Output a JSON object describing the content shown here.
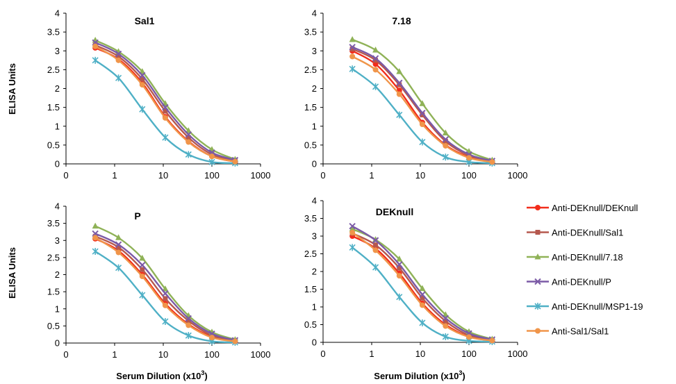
{
  "figure": {
    "xlabel": "Serum Dilution (x10",
    "xlabel_sup": "3",
    "xlabel_end": ")",
    "ylabel": "ELISA Units"
  },
  "legend": [
    {
      "label": "Anti-DEKnull/DEKnull",
      "color": "#f22d1b",
      "marker": "circle"
    },
    {
      "label": "Anti-DEKnull/Sal1",
      "color": "#b5584e",
      "marker": "square"
    },
    {
      "label": "Anti-DEKnull/7.18",
      "color": "#8fb257",
      "marker": "triangle"
    },
    {
      "label": "Anti-DEKnull/P",
      "color": "#7b5aa6",
      "marker": "x"
    },
    {
      "label": "Anti-DEKnull/MSP1-19",
      "color": "#4fb0c6",
      "marker": "star"
    },
    {
      "label": "Anti-Sal1/Sal1",
      "color": "#f0954a",
      "marker": "circle"
    }
  ],
  "chart_data": [
    {
      "type": "line",
      "title": "Sal1",
      "x_scale": "log",
      "xlim": [
        0.1,
        1000
      ],
      "ylim": [
        0,
        4
      ],
      "x_ticks": [
        "0",
        "1",
        "10",
        "100",
        "1000"
      ],
      "y_ticks": [
        "0",
        "0.5",
        "1",
        "1.5",
        "2",
        "2.5",
        "3",
        "3.5",
        "4"
      ],
      "x": [
        0.4,
        1.2,
        3.7,
        11,
        33,
        100,
        300
      ],
      "series": [
        {
          "name": "Anti-DEKnull/DEKnull",
          "values": [
            3.08,
            2.78,
            2.15,
            1.25,
            0.6,
            0.2,
            0.06
          ]
        },
        {
          "name": "Anti-DEKnull/Sal1",
          "values": [
            3.15,
            2.85,
            2.25,
            1.4,
            0.7,
            0.25,
            0.08
          ]
        },
        {
          "name": "Anti-DEKnull/7.18",
          "values": [
            3.28,
            2.98,
            2.45,
            1.6,
            0.88,
            0.38,
            0.12
          ]
        },
        {
          "name": "Anti-DEKnull/P",
          "values": [
            3.22,
            2.92,
            2.35,
            1.5,
            0.78,
            0.3,
            0.1
          ]
        },
        {
          "name": "Anti-DEKnull/MSP1-19",
          "values": [
            2.75,
            2.28,
            1.45,
            0.7,
            0.25,
            0.05,
            0.02
          ]
        },
        {
          "name": "Anti-Sal1/Sal1",
          "values": [
            3.12,
            2.75,
            2.1,
            1.22,
            0.58,
            0.2,
            0.06
          ]
        }
      ]
    },
    {
      "type": "line",
      "title": "7.18",
      "x_scale": "log",
      "xlim": [
        0.1,
        1000
      ],
      "ylim": [
        0,
        4
      ],
      "x_ticks": [
        "0",
        "1",
        "10",
        "100",
        "1000"
      ],
      "y_ticks": [
        "0",
        "0.5",
        "1",
        "1.5",
        "2",
        "2.5",
        "3",
        "3.5",
        "4"
      ],
      "x": [
        0.4,
        1.2,
        3.7,
        11,
        33,
        100,
        300
      ],
      "series": [
        {
          "name": "Anti-DEKnull/DEKnull",
          "values": [
            3.0,
            2.65,
            1.95,
            1.1,
            0.5,
            0.18,
            0.05
          ]
        },
        {
          "name": "Anti-DEKnull/Sal1",
          "values": [
            3.05,
            2.75,
            2.1,
            1.3,
            0.6,
            0.22,
            0.07
          ]
        },
        {
          "name": "Anti-DEKnull/7.18",
          "values": [
            3.3,
            3.02,
            2.45,
            1.6,
            0.82,
            0.33,
            0.1
          ]
        },
        {
          "name": "Anti-DEKnull/P",
          "values": [
            3.1,
            2.8,
            2.15,
            1.35,
            0.65,
            0.25,
            0.08
          ]
        },
        {
          "name": "Anti-DEKnull/MSP1-19",
          "values": [
            2.52,
            2.05,
            1.3,
            0.58,
            0.18,
            0.05,
            0.02
          ]
        },
        {
          "name": "Anti-Sal1/Sal1",
          "values": [
            2.85,
            2.5,
            1.85,
            1.05,
            0.48,
            0.16,
            0.05
          ]
        }
      ]
    },
    {
      "type": "line",
      "title": "P",
      "x_scale": "log",
      "xlim": [
        0.1,
        1000
      ],
      "ylim": [
        0,
        4
      ],
      "x_ticks": [
        "0",
        "1",
        "10",
        "100",
        "1000"
      ],
      "y_ticks": [
        "0",
        "0.5",
        "1",
        "1.5",
        "2",
        "2.5",
        "3",
        "3.5",
        "4"
      ],
      "x": [
        0.4,
        1.2,
        3.7,
        11,
        33,
        100,
        300
      ],
      "series": [
        {
          "name": "Anti-DEKnull/DEKnull",
          "values": [
            3.05,
            2.7,
            2.0,
            1.15,
            0.55,
            0.18,
            0.05
          ]
        },
        {
          "name": "Anti-DEKnull/Sal1",
          "values": [
            3.12,
            2.8,
            2.15,
            1.3,
            0.65,
            0.22,
            0.07
          ]
        },
        {
          "name": "Anti-DEKnull/7.18",
          "values": [
            3.42,
            3.08,
            2.48,
            1.58,
            0.8,
            0.32,
            0.1
          ]
        },
        {
          "name": "Anti-DEKnull/P",
          "values": [
            3.2,
            2.88,
            2.28,
            1.45,
            0.72,
            0.27,
            0.08
          ]
        },
        {
          "name": "Anti-DEKnull/MSP1-19",
          "values": [
            2.68,
            2.2,
            1.4,
            0.63,
            0.22,
            0.05,
            0.02
          ]
        },
        {
          "name": "Anti-Sal1/Sal1",
          "values": [
            3.08,
            2.65,
            1.95,
            1.1,
            0.52,
            0.16,
            0.05
          ]
        }
      ]
    },
    {
      "type": "line",
      "title": "DEKnull",
      "x_scale": "log",
      "xlim": [
        0.1,
        1000
      ],
      "ylim": [
        0,
        4
      ],
      "x_ticks": [
        "0",
        "1",
        "10",
        "100",
        "1000"
      ],
      "y_ticks": [
        "0",
        "0.5",
        "1",
        "1.5",
        "2",
        "2.5",
        "3",
        "3.5",
        "4"
      ],
      "x": [
        0.4,
        1.2,
        3.7,
        11,
        33,
        100,
        300
      ],
      "series": [
        {
          "name": "Anti-DEKnull/DEKnull",
          "values": [
            3.0,
            2.65,
            1.95,
            1.1,
            0.5,
            0.16,
            0.05
          ]
        },
        {
          "name": "Anti-DEKnull/Sal1",
          "values": [
            3.08,
            2.75,
            2.1,
            1.25,
            0.6,
            0.2,
            0.06
          ]
        },
        {
          "name": "Anti-DEKnull/7.18",
          "values": [
            3.2,
            2.9,
            2.35,
            1.52,
            0.78,
            0.3,
            0.09
          ]
        },
        {
          "name": "Anti-DEKnull/P",
          "values": [
            3.28,
            2.88,
            2.2,
            1.35,
            0.68,
            0.25,
            0.08
          ]
        },
        {
          "name": "Anti-DEKnull/MSP1-19",
          "values": [
            2.68,
            2.12,
            1.28,
            0.55,
            0.16,
            0.04,
            0.02
          ]
        },
        {
          "name": "Anti-Sal1/Sal1",
          "values": [
            3.1,
            2.6,
            1.88,
            1.05,
            0.46,
            0.15,
            0.05
          ]
        }
      ]
    }
  ]
}
